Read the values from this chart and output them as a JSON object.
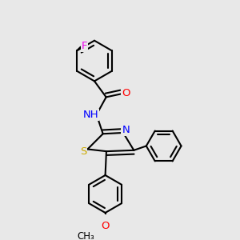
{
  "bg_color": "#e8e8e8",
  "bond_color": "#000000",
  "bond_width": 1.5,
  "atom_colors": {
    "F": "#ee00ee",
    "O": "#ff0000",
    "N": "#0000ff",
    "S": "#ccaa00",
    "C": "#000000"
  },
  "font_size": 9.5
}
